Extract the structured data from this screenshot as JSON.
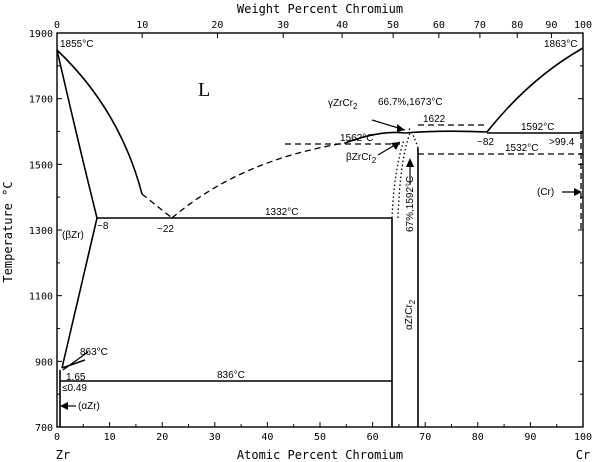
{
  "axes": {
    "top_title": "Weight Percent Chromium",
    "bottom_title": "Atomic Percent Chromium",
    "left_title": "Temperature °C",
    "left_element": "Zr",
    "right_element": "Cr",
    "x_range": [
      0,
      100
    ],
    "y_range": [
      700,
      1900
    ],
    "bottom_ticks": [
      "0",
      "10",
      "20",
      "30",
      "40",
      "50",
      "60",
      "70",
      "80",
      "90",
      "100"
    ],
    "top_ticks": [
      {
        "label": "0",
        "at": 0
      },
      {
        "label": "10",
        "at": 16.2
      },
      {
        "label": "20",
        "at": 30.5
      },
      {
        "label": "30",
        "at": 43.0
      },
      {
        "label": "40",
        "at": 54.2
      },
      {
        "label": "50",
        "at": 63.9
      },
      {
        "label": "60",
        "at": 72.6
      },
      {
        "label": "70",
        "at": 80.4
      },
      {
        "label": "80",
        "at": 87.5
      },
      {
        "label": "90",
        "at": 94.0
      },
      {
        "label": "100",
        "at": 100
      }
    ],
    "y_ticks": [
      "1900",
      "1700",
      "1500",
      "1300",
      "1100",
      "900",
      "700"
    ]
  },
  "labels": {
    "zr_melt": "1855°C",
    "cr_melt": "1863°C",
    "liquid": "L",
    "gamma_phase": "γZrCr",
    "gamma_sub": "2",
    "gamma_point": "66.7%,1673°C",
    "beta_phase": "βZrCr",
    "beta_sub": "2",
    "alpha_phase": "αZrCr",
    "alpha_sub": "2",
    "alpha_point": "67%,1592°C",
    "t1622": "1622",
    "t1592": "1592°C",
    "t1562": "1562°C",
    "t1532": "1532°C",
    "c82": "~82",
    "c99": ">99.4",
    "cr_phase": "(Cr)",
    "beta_zr": "(βZr)",
    "c8": "~8",
    "c22": "~22",
    "t1332": "1332°C",
    "t863": "863°C",
    "t836": "836°C",
    "c165": "1.65",
    "c049": "≤0.49",
    "alpha_zr": "(αZr)"
  }
}
